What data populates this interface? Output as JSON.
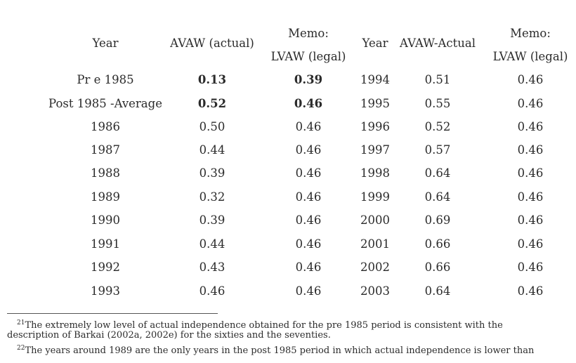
{
  "table": {
    "headers": {
      "year1": "Year",
      "avaw_actual": "AVAW (actual)",
      "memo1_line1": "Memo:",
      "memo1_line2": "LVAW (legal)",
      "year2": "Year",
      "avaw_actual2": "AVAW-Actual",
      "memo2_line1": "Memo:",
      "memo2_line2": "LVAW (legal)"
    },
    "rows": [
      {
        "year1": "Pr e 1985",
        "avaw": "0.13",
        "lvaw": "0.39",
        "year2": "1994",
        "avaw2": "0.51",
        "lvaw2": "0.46"
      },
      {
        "year1": "Post 1985 -Average",
        "avaw": "0.52",
        "lvaw": "0.46",
        "year2": "1995",
        "avaw2": "0.55",
        "lvaw2": "0.46"
      },
      {
        "year1": "1986",
        "avaw": "0.50",
        "lvaw": "0.46",
        "year2": "1996",
        "avaw2": "0.52",
        "lvaw2": "0.46"
      },
      {
        "year1": "1987",
        "avaw": "0.44",
        "lvaw": "0.46",
        "year2": "1997",
        "avaw2": "0.57",
        "lvaw2": "0.46"
      },
      {
        "year1": "1988",
        "avaw": "0.39",
        "lvaw": "0.46",
        "year2": "1998",
        "avaw2": "0.64",
        "lvaw2": "0.46"
      },
      {
        "year1": "1989",
        "avaw": "0.32",
        "lvaw": "0.46",
        "year2": "1999",
        "avaw2": "0.64",
        "lvaw2": "0.46"
      },
      {
        "year1": "1990",
        "avaw": "0.39",
        "lvaw": "0.46",
        "year2": "2000",
        "avaw2": "0.69",
        "lvaw2": "0.46"
      },
      {
        "year1": "1991",
        "avaw": "0.44",
        "lvaw": "0.46",
        "year2": "2001",
        "avaw2": "0.66",
        "lvaw2": "0.46"
      },
      {
        "year1": "1992",
        "avaw": "0.43",
        "lvaw": "0.46",
        "year2": "2002",
        "avaw2": "0.66",
        "lvaw2": "0.46"
      },
      {
        "year1": "1993",
        "avaw": "0.46",
        "lvaw": "0.46",
        "year2": "2003",
        "avaw2": "0.64",
        "lvaw2": "0.46"
      }
    ]
  },
  "footnotes": {
    "fn21_mark": "21",
    "fn21_line1": "The extremely low level of actual independence obtained for the pre 1985 period is consistent with the",
    "fn21_line2": "description of Barkai (2002a, 2002e) for the sixties and the seventies.",
    "fn22_mark": "22",
    "fn22_line1": "The years around 1989 are the only years in the post 1985 period in which actual independence is lower than"
  }
}
